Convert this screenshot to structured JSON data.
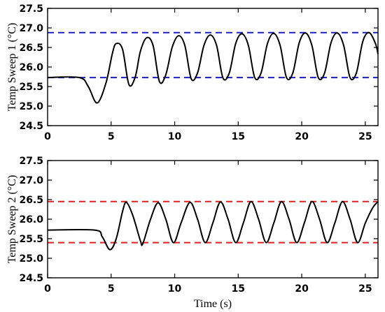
{
  "chart_data": [
    {
      "type": "line",
      "ylabel": "Temp Sweep 1 (°C)",
      "xlabel": "",
      "xlim": [
        0,
        26
      ],
      "ylim": [
        24.5,
        27.5
      ],
      "xticks": [
        0,
        5,
        10,
        15,
        20,
        25
      ],
      "yticks": [
        24.5,
        25.0,
        25.5,
        26.0,
        26.5,
        27.0,
        27.5
      ],
      "tick_labels_x": [
        "0",
        "5",
        "10",
        "15",
        "20",
        "25"
      ],
      "tick_labels_y": [
        "24.5",
        "25.0",
        "25.5",
        "26.0",
        "26.5",
        "27.0",
        "27.5"
      ],
      "reference_lines": [
        {
          "y": 26.88,
          "color": "#1f1fbf",
          "style": "dashed"
        },
        {
          "y": 25.73,
          "color": "#1f1fbf",
          "style": "dashed"
        }
      ],
      "series": [
        {
          "color": "#000000",
          "x": [
            0,
            2.5,
            3.2,
            3.9,
            4.6,
            5.1,
            5.4,
            5.9,
            6.4,
            6.9,
            7.3,
            7.8,
            8.3,
            8.8,
            9.3,
            9.8,
            10.3,
            10.8,
            11.3,
            11.8,
            12.3,
            12.8,
            13.3,
            13.8,
            14.3,
            14.8,
            15.3,
            15.8,
            16.3,
            16.8,
            17.3,
            17.8,
            18.3,
            18.8,
            19.3,
            19.8,
            20.3,
            20.8,
            21.3,
            21.8,
            22.3,
            22.8,
            23.3,
            23.8,
            24.3,
            24.8,
            25.3,
            25.8,
            26
          ],
          "y": [
            25.73,
            25.73,
            25.5,
            25.08,
            25.6,
            26.35,
            26.6,
            26.45,
            25.55,
            25.75,
            26.4,
            26.75,
            26.55,
            25.63,
            25.8,
            26.5,
            26.8,
            26.55,
            25.7,
            25.85,
            26.55,
            26.82,
            26.55,
            25.72,
            25.85,
            26.6,
            26.85,
            26.55,
            25.73,
            25.85,
            26.6,
            26.86,
            26.55,
            25.73,
            25.85,
            26.62,
            26.87,
            26.55,
            25.73,
            25.85,
            26.62,
            26.87,
            26.55,
            25.73,
            25.85,
            26.65,
            26.88,
            26.6,
            26.33
          ]
        }
      ]
    },
    {
      "type": "line",
      "ylabel": "Temp Sweep 2 (°C)",
      "xlabel": "Time (s)",
      "xlim": [
        0,
        26
      ],
      "ylim": [
        24.5,
        27.5
      ],
      "xticks": [
        0,
        5,
        10,
        15,
        20,
        25
      ],
      "yticks": [
        24.5,
        25.0,
        25.5,
        26.0,
        26.5,
        27.0,
        27.5
      ],
      "tick_labels_x": [
        "0",
        "5",
        "10",
        "15",
        "20",
        "25"
      ],
      "tick_labels_y": [
        "24.5",
        "25.0",
        "25.5",
        "26.0",
        "26.5",
        "27.0",
        "27.5"
      ],
      "reference_lines": [
        {
          "y": 26.45,
          "color": "#e02020",
          "style": "dashed"
        },
        {
          "y": 25.4,
          "color": "#e02020",
          "style": "dashed"
        }
      ],
      "series": [
        {
          "color": "#000000",
          "x": [
            0,
            3.7,
            4.3,
            4.9,
            5.4,
            5.9,
            6.2,
            6.7,
            7.3,
            7.5,
            8.1,
            8.7,
            9.3,
            9.9,
            10.5,
            11.2,
            11.8,
            12.4,
            13.0,
            13.6,
            14.2,
            14.8,
            15.4,
            16.0,
            16.6,
            17.2,
            17.8,
            18.4,
            19.0,
            19.6,
            20.2,
            20.8,
            21.4,
            22.0,
            22.6,
            23.2,
            23.8,
            24.4,
            25.0,
            25.6,
            26
          ],
          "y": [
            25.72,
            25.72,
            25.55,
            25.22,
            25.5,
            26.2,
            26.43,
            26.1,
            25.45,
            25.38,
            26.0,
            26.42,
            26.0,
            25.4,
            25.9,
            26.43,
            26.0,
            25.4,
            25.9,
            26.44,
            26.0,
            25.4,
            25.9,
            26.45,
            26.0,
            25.4,
            25.9,
            26.45,
            26.0,
            25.4,
            25.9,
            26.45,
            26.0,
            25.4,
            25.9,
            26.45,
            26.0,
            25.4,
            25.9,
            26.3,
            26.45
          ]
        }
      ]
    }
  ]
}
